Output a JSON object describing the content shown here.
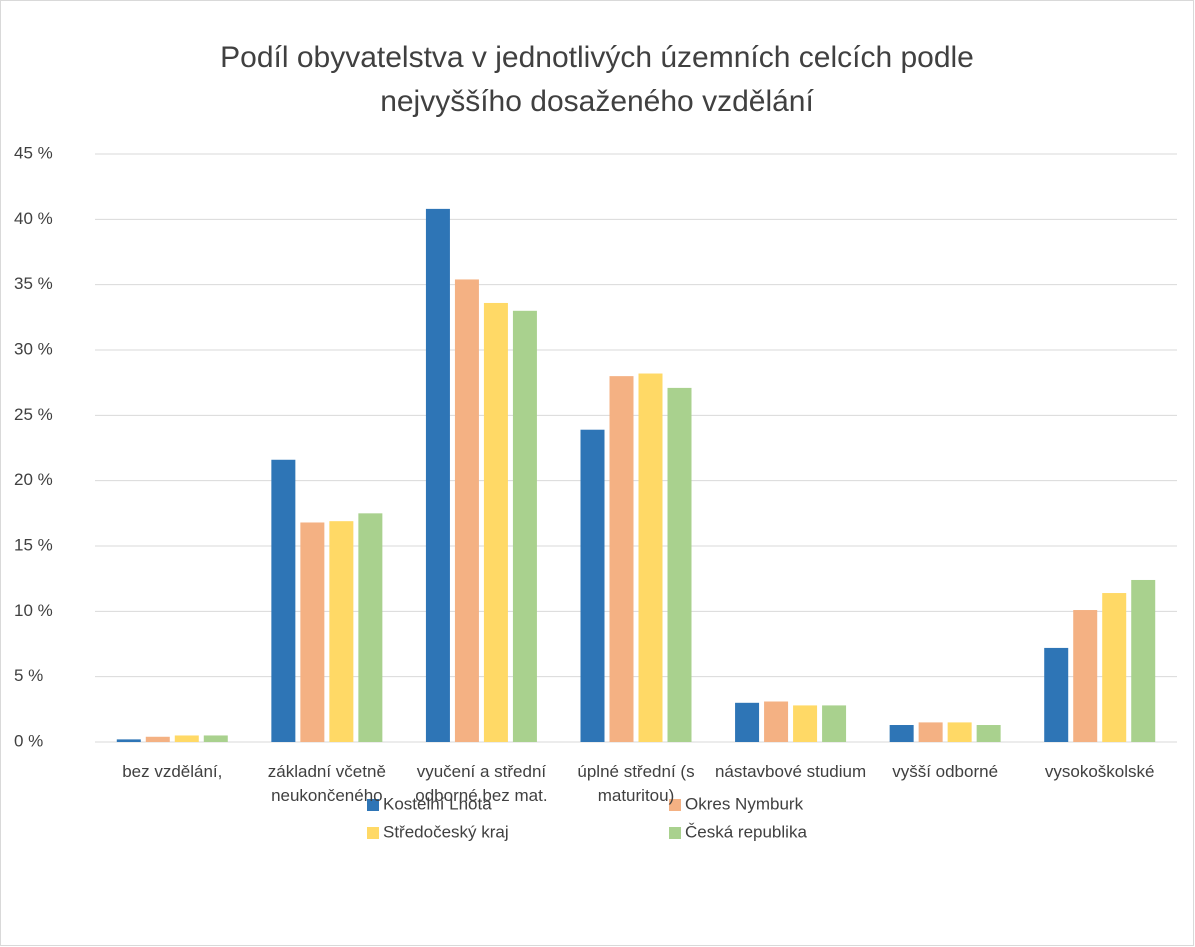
{
  "chart_data": {
    "type": "bar",
    "title": "Podíl obyvatelstva v jednotlivých územních celcích podle nejvyššího dosaženého vzdělání",
    "categories": [
      "bez vzdělání,",
      "základní včetně neukončeného",
      "vyučení a střední odborné bez mat.",
      "úplné střední (s maturitou)",
      "nástavbové studium",
      "vyšší odborné",
      "vysokoškolské"
    ],
    "series": [
      {
        "name": "Kostelní Lhota",
        "color": "#2e75b6",
        "values": [
          0.2,
          21.6,
          40.8,
          23.9,
          3.0,
          1.3,
          7.2
        ]
      },
      {
        "name": "Okres Nymburk",
        "color": "#f4b183",
        "values": [
          0.4,
          16.8,
          35.4,
          28.0,
          3.1,
          1.5,
          10.1
        ]
      },
      {
        "name": "Středočeský kraj",
        "color": "#ffd966",
        "values": [
          0.5,
          16.9,
          33.6,
          28.2,
          2.8,
          1.5,
          11.4
        ]
      },
      {
        "name": "Česká republika",
        "color": "#a9d18e",
        "values": [
          0.5,
          17.5,
          33.0,
          27.1,
          2.8,
          1.3,
          12.4
        ]
      }
    ],
    "ylim": [
      0,
      45
    ],
    "yticks": [
      {
        "value": 0,
        "label": "0 %"
      },
      {
        "value": 5,
        "label": "5 %"
      },
      {
        "value": 10,
        "label": "10 %"
      },
      {
        "value": 15,
        "label": "15 %"
      },
      {
        "value": 20,
        "label": "20 %"
      },
      {
        "value": 25,
        "label": "25 %"
      },
      {
        "value": 30,
        "label": "30 %"
      },
      {
        "value": 35,
        "label": "35 %"
      },
      {
        "value": 40,
        "label": "40 %"
      },
      {
        "value": 45,
        "label": "45 %"
      }
    ],
    "grid": true
  }
}
